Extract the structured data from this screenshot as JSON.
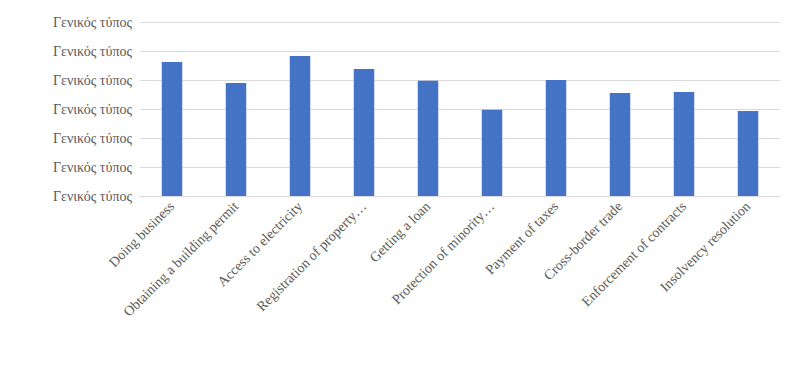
{
  "chart_data": {
    "type": "bar",
    "categories": [
      "Doing business",
      "Obtaining a building permit",
      "Access to electricity",
      "Registration of property…",
      "Getting a loan",
      "Protection of minority…",
      "Payment of taxes",
      "Cross-border trade",
      "Enforcement of contracts",
      "Insolvency resolution"
    ],
    "values": [
      4.62,
      3.9,
      4.83,
      4.38,
      3.97,
      2.97,
      4.0,
      3.55,
      3.59,
      2.93
    ],
    "color": "#4472c4",
    "ylim": [
      0,
      6
    ],
    "yticks": [
      {
        "value": 0,
        "label": "Γενικός τύπος"
      },
      {
        "value": 1,
        "label": "Γενικός τύπος"
      },
      {
        "value": 2,
        "label": "Γενικός τύπος"
      },
      {
        "value": 3,
        "label": "Γενικός τύπος"
      },
      {
        "value": 4,
        "label": "Γενικός τύπος"
      },
      {
        "value": 5,
        "label": "Γενικός τύπος"
      },
      {
        "value": 6,
        "label": "Γενικός τύπος"
      }
    ],
    "grid": true
  }
}
